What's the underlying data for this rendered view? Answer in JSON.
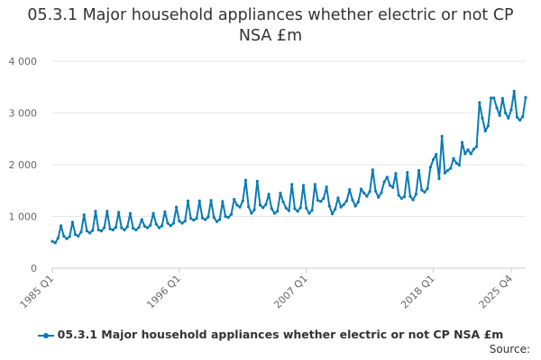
{
  "colors": {
    "series": "#0a7bb4",
    "grid": "#e6e6e6",
    "axis_text": "#666666"
  },
  "legend": {
    "label": "05.3.1 Major household appliances whether electric or not CP NSA £m"
  },
  "footer": {
    "source_label": "Source:"
  },
  "chart_data": {
    "type": "line",
    "title": "05.3.1 Major household appliances whether electric or not CP NSA £m",
    "xlabel": "",
    "ylabel": "",
    "ylim": [
      0,
      4000
    ],
    "y_ticks": [
      0,
      1000,
      2000,
      3000,
      4000
    ],
    "y_tick_labels": [
      "0",
      "1 000",
      "2 000",
      "3 000",
      "4 000"
    ],
    "x_tick_labels": [
      "1985 Q1",
      "1996 Q1",
      "2007 Q1",
      "2018 Q1",
      "2025 Q4"
    ],
    "x_tick_indices": [
      0,
      44,
      88,
      132,
      159
    ],
    "grid": true,
    "legend_position": "bottom",
    "series": [
      {
        "name": "05.3.1 Major household appliances whether electric or not CP NSA £m",
        "values": [
          520,
          490,
          580,
          820,
          620,
          570,
          610,
          890,
          650,
          620,
          700,
          1030,
          720,
          680,
          730,
          1100,
          740,
          720,
          780,
          1100,
          760,
          740,
          790,
          1080,
          780,
          740,
          800,
          1060,
          770,
          740,
          790,
          940,
          810,
          780,
          830,
          1060,
          850,
          780,
          820,
          1090,
          870,
          820,
          870,
          1180,
          910,
          870,
          910,
          1300,
          960,
          930,
          960,
          1300,
          970,
          940,
          990,
          1310,
          980,
          900,
          940,
          1290,
          1000,
          980,
          1040,
          1330,
          1220,
          1180,
          1300,
          1700,
          1190,
          1060,
          1130,
          1680,
          1220,
          1170,
          1230,
          1430,
          1150,
          1060,
          1100,
          1450,
          1280,
          1160,
          1110,
          1620,
          1150,
          1100,
          1170,
          1600,
          1160,
          1060,
          1120,
          1620,
          1310,
          1290,
          1350,
          1570,
          1200,
          1050,
          1140,
          1360,
          1180,
          1230,
          1300,
          1520,
          1320,
          1200,
          1280,
          1530,
          1450,
          1390,
          1480,
          1900,
          1490,
          1370,
          1460,
          1670,
          1760,
          1600,
          1560,
          1830,
          1410,
          1350,
          1380,
          1850,
          1390,
          1320,
          1430,
          1890,
          1510,
          1470,
          1540,
          1950,
          2100,
          2200,
          1730,
          2550,
          1840,
          1890,
          1930,
          2120,
          2030,
          1990,
          2430,
          2210,
          2290,
          2210,
          2300,
          2350,
          3200,
          2900,
          2650,
          2750,
          3290,
          3290,
          3100,
          2950,
          3280,
          3000,
          2900,
          3060,
          3420,
          2920,
          2860,
          2930,
          3300
        ]
      }
    ]
  }
}
